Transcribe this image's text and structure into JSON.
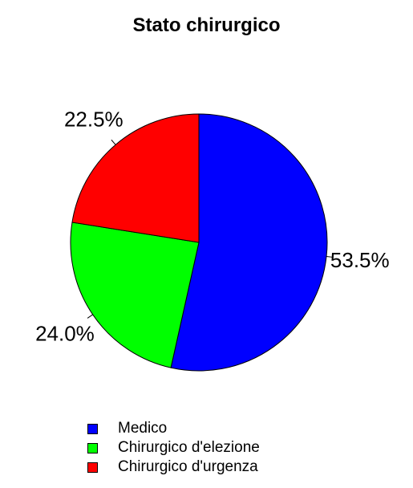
{
  "chart_data": {
    "type": "pie",
    "title": "Stato chirurgico",
    "categories": [
      "Medico",
      "Chirurgico d'elezione",
      "Chirurgico d'urgenza"
    ],
    "values": [
      53.5,
      24.0,
      22.5
    ],
    "labels": [
      "53.5%",
      "24.0%",
      "22.5%"
    ],
    "colors": [
      "#0000ff",
      "#00ff00",
      "#ff0000"
    ],
    "start_angle_deg": 90,
    "direction": "clockwise",
    "legend_position": "bottom"
  }
}
